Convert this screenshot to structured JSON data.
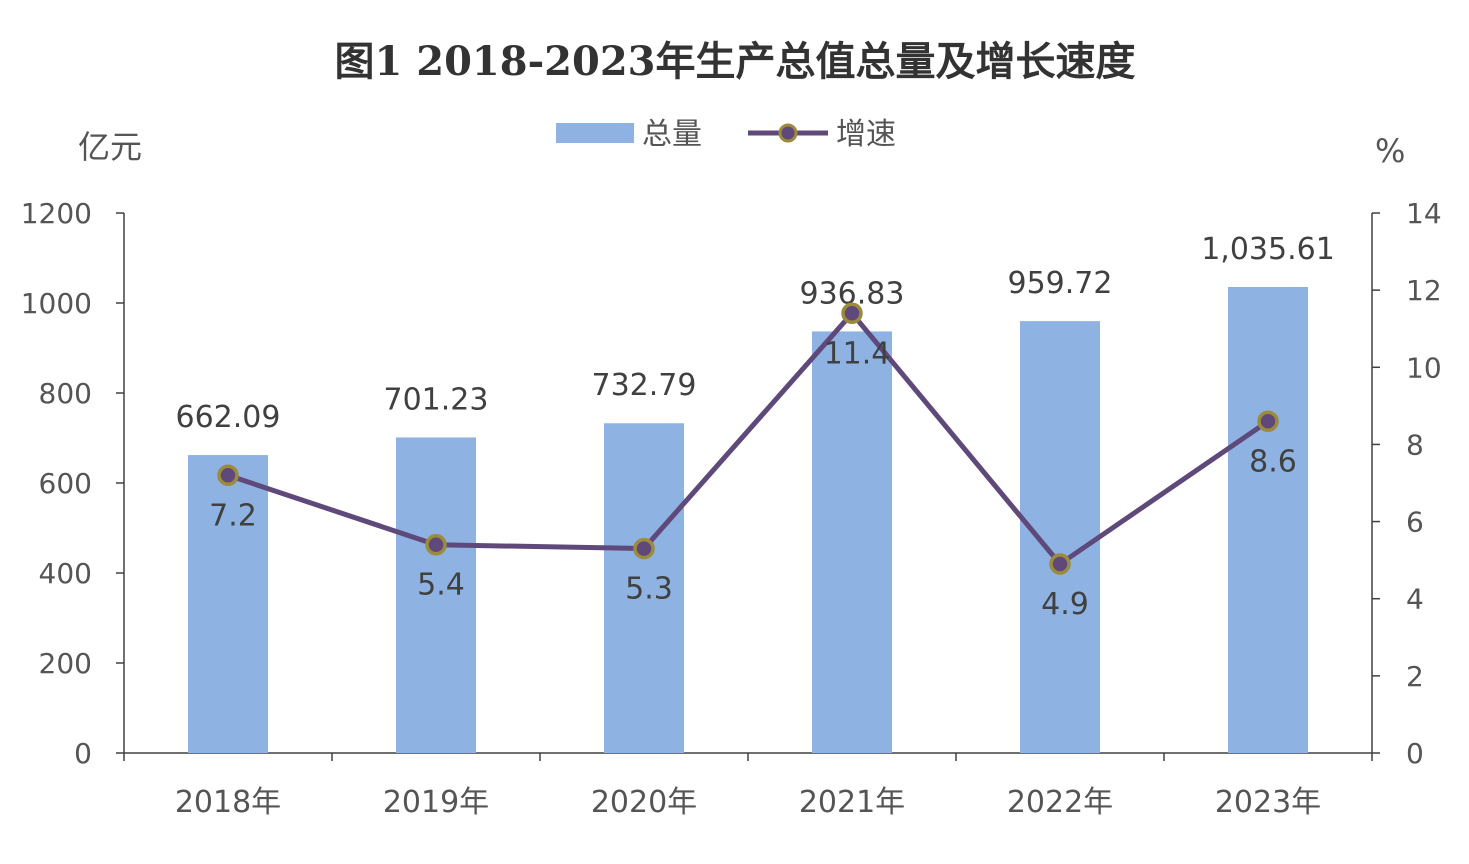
{
  "chart_data": {
    "type": "bar",
    "title": "图1 2018-2023年生产总值总量及增长速度",
    "categories": [
      "2018年",
      "2019年",
      "2020年",
      "2021年",
      "2022年",
      "2023年"
    ],
    "series": [
      {
        "name": "总量",
        "type": "bar",
        "axis": "left",
        "values": [
          662.09,
          701.23,
          732.79,
          936.83,
          959.72,
          1035.61
        ],
        "labels": [
          "662.09",
          "701.23",
          "732.79",
          "936.83",
          "959.72",
          "1,035.61"
        ],
        "color": "#8EB3E2"
      },
      {
        "name": "增速",
        "type": "line",
        "axis": "right",
        "values": [
          7.2,
          5.4,
          5.3,
          11.4,
          4.9,
          8.6
        ],
        "labels": [
          "7.2",
          "5.4",
          "5.3",
          "11.4",
          "4.9",
          "8.6"
        ],
        "color": "#5F497A",
        "marker_edge_color": "#9C8B3B"
      }
    ],
    "y_left": {
      "unit": "亿元",
      "ylim": [
        0,
        1200
      ],
      "ticks": [
        "0",
        "200",
        "400",
        "600",
        "800",
        "1000",
        "1200"
      ]
    },
    "y_right": {
      "unit": "%",
      "ylim": [
        0,
        14
      ],
      "ticks": [
        "0",
        "2",
        "4",
        "6",
        "8",
        "10",
        "12",
        "14"
      ]
    },
    "grid": false,
    "legend_position": "top-center"
  }
}
